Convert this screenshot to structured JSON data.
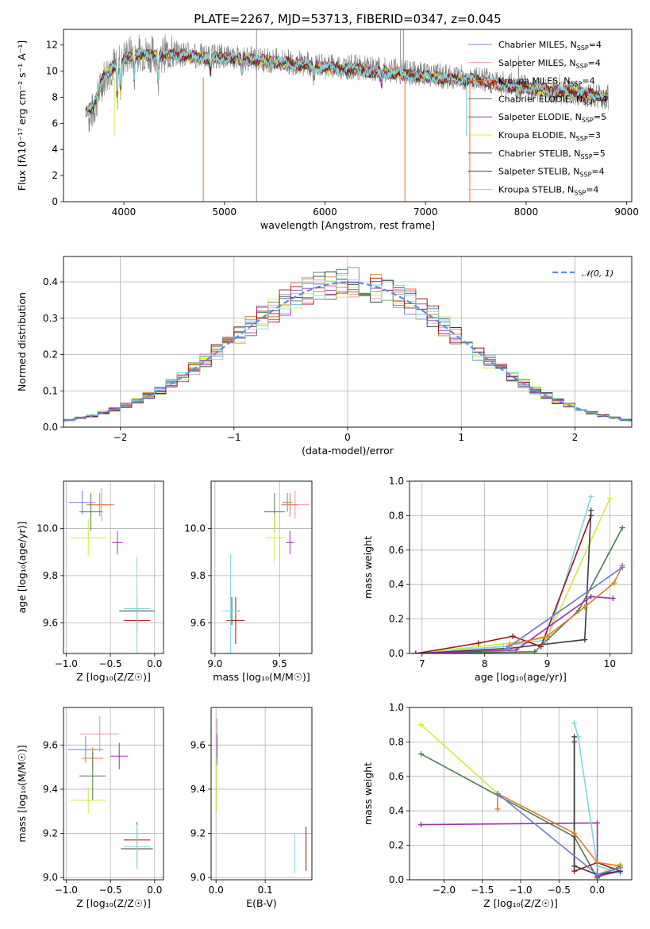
{
  "chart_data": [
    {
      "id": "spectrum",
      "type": "line",
      "title": "PLATE=2267, MJD=53713, FIBERID=0347, z=0.045",
      "xlabel": "wavelength [Angstrom, rest frame]",
      "ylabel": "Flux [fλ10⁻¹⁷ erg cm⁻² s⁻¹ A⁻¹]",
      "xlim": [
        3400,
        9050
      ],
      "ylim": [
        0,
        13.2
      ],
      "xticks": [
        4000,
        5000,
        6000,
        7000,
        8000,
        9000
      ],
      "yticks": [
        0,
        2,
        4,
        6,
        8,
        10,
        12
      ],
      "legend_position": "upper-right",
      "observed": {
        "color": "#808080",
        "wave": [
          3650,
          3700,
          3800,
          3900,
          4000,
          4100,
          4300,
          4500,
          4800,
          5000,
          5200,
          5500,
          5800,
          6000,
          6300,
          6600,
          6900,
          7200,
          7500,
          7800,
          8100,
          8500,
          8800
        ],
        "flux": [
          6.5,
          7.0,
          9.5,
          10.5,
          11.0,
          11.5,
          11.3,
          11.4,
          11.1,
          11.2,
          11.0,
          10.8,
          10.6,
          10.4,
          10.3,
          10.1,
          9.8,
          9.6,
          9.4,
          9.0,
          8.6,
          8.3,
          8.0
        ]
      },
      "models": [
        {
          "name": "Chabrier MILES, N_SSP=4",
          "label": "Chabrier MILES, N",
          "sub": "SSP",
          "suffix": "=4",
          "color": "#6f7fd6"
        },
        {
          "name": "Salpeter MILES, N_SSP=4",
          "label": "Salpeter MILES, N",
          "sub": "SSP",
          "suffix": "=4",
          "color": "#e88ab8"
        },
        {
          "name": "Kroupa MILES, N_SSP=4",
          "label": "Kroupa MILES, N",
          "sub": "SSP",
          "suffix": "=4",
          "color": "#e07b2a"
        },
        {
          "name": "Chabrier ELODIE, N_SSP=4",
          "label": "Chabrier ELODIE, N",
          "sub": "SSP",
          "suffix": "=4",
          "color": "#4e7d4e"
        },
        {
          "name": "Salpeter ELODIE, N_SSP=5",
          "label": "Salpeter ELODIE, N",
          "sub": "SSP",
          "suffix": "=5",
          "color": "#9b30a8"
        },
        {
          "name": "Kroupa ELODIE, N_SSP=3",
          "label": "Kroupa ELODIE, N",
          "sub": "SSP",
          "suffix": "=3",
          "color": "#d4e83a"
        },
        {
          "name": "Chabrier STELIB, N_SSP=5",
          "label": "Chabrier STELIB, N",
          "sub": "SSP",
          "suffix": "=5",
          "color": "#3d3d3d"
        },
        {
          "name": "Salpeter STELIB, N_SSP=4",
          "label": "Salpeter STELIB, N",
          "sub": "SSP",
          "suffix": "=4",
          "color": "#a01010"
        },
        {
          "name": "Kroupa STELIB, N_SSP=4",
          "label": "Kroupa STELIB, N",
          "sub": "SSP",
          "suffix": "=4",
          "color": "#7dd8e0"
        }
      ],
      "model_continuum": {
        "wave": [
          3620,
          3700,
          3800,
          3900,
          4000,
          4100,
          4300,
          4500,
          4800,
          5000,
          5200,
          5500,
          5800,
          6000,
          6300,
          6600,
          6900,
          7200,
          7500,
          7800,
          8100,
          8500,
          8800
        ],
        "flux": [
          7.0,
          7.3,
          9.6,
          10.4,
          10.8,
          11.3,
          11.2,
          11.3,
          11.0,
          11.0,
          10.9,
          10.7,
          10.5,
          10.3,
          10.1,
          9.9,
          9.7,
          9.4,
          9.3,
          8.9,
          8.6,
          8.3,
          8.1
        ]
      }
    },
    {
      "id": "residuals",
      "type": "step",
      "xlabel": "(data-model)/error",
      "ylabel": "Normed distribution",
      "xlim": [
        -2.5,
        2.5
      ],
      "ylim": [
        0,
        0.47
      ],
      "xticks": [
        -2,
        -1,
        0,
        1,
        2
      ],
      "yticks": [
        0.0,
        0.1,
        0.2,
        0.3,
        0.4
      ],
      "legend_position": "upper-right",
      "gaussian_label": "𝒩(0, 1)",
      "gaussian_color": "#5b8ddb",
      "bin_width": 0.1
    },
    {
      "id": "age-vs-Z",
      "type": "errorbar",
      "xlabel": "Z [log₁₀(Z/Z☉)]",
      "ylabel": "age  [log₁₀(age/yr)]",
      "xlim": [
        -1.03,
        0.1
      ],
      "ylim": [
        9.47,
        10.2
      ],
      "xticks": [
        -1.0,
        -0.5,
        0.0
      ],
      "yticks": [
        9.6,
        9.8,
        10.0
      ],
      "points": [
        {
          "model": 0,
          "x": -0.82,
          "xerr": 0.15,
          "y": 10.11,
          "yerr": 0.05
        },
        {
          "model": 1,
          "x": -0.6,
          "xerr": 0.15,
          "y": 10.1,
          "yerr": 0.07
        },
        {
          "model": 2,
          "x": -0.62,
          "xerr": 0.15,
          "y": 10.1,
          "yerr": 0.05
        },
        {
          "model": 3,
          "x": -0.72,
          "xerr": 0.13,
          "y": 10.07,
          "yerr": 0.08
        },
        {
          "model": 4,
          "x": -0.42,
          "xerr": 0.06,
          "y": 9.94,
          "yerr": 0.05
        },
        {
          "model": 5,
          "x": -0.75,
          "xerr": 0.2,
          "y": 9.96,
          "yerr": 0.08
        },
        {
          "model": 6,
          "x": -0.2,
          "xerr": 0.2,
          "y": 9.65,
          "yerr": 0.07
        },
        {
          "model": 7,
          "x": -0.2,
          "xerr": 0.15,
          "y": 9.61,
          "yerr": 0.05
        },
        {
          "model": 8,
          "x": -0.2,
          "xerr": 0.15,
          "y": 9.66,
          "yerr": 0.22
        }
      ]
    },
    {
      "id": "age-vs-mass",
      "type": "errorbar",
      "xlabel": "mass [log₁₀(M/M☉)]",
      "ylabel": "",
      "xlim": [
        8.97,
        9.75
      ],
      "ylim": [
        9.47,
        10.2
      ],
      "xticks": [
        9.0,
        9.5
      ],
      "yticks": [
        9.6,
        9.8,
        10.0
      ],
      "points": [
        {
          "model": 0,
          "x": 9.56,
          "xerr": 0.04,
          "y": 10.11,
          "yerr": 0.04
        },
        {
          "model": 1,
          "x": 9.62,
          "xerr": 0.11,
          "y": 10.1,
          "yerr": 0.06
        },
        {
          "model": 2,
          "x": 9.58,
          "xerr": 0.06,
          "y": 10.1,
          "yerr": 0.05
        },
        {
          "model": 3,
          "x": 9.46,
          "xerr": 0.08,
          "y": 10.07,
          "yerr": 0.08
        },
        {
          "model": 4,
          "x": 9.58,
          "xerr": 0.03,
          "y": 9.94,
          "yerr": 0.05
        },
        {
          "model": 5,
          "x": 9.46,
          "xerr": 0.07,
          "y": 9.96,
          "yerr": 0.1
        },
        {
          "model": 6,
          "x": 9.13,
          "xerr": 0.06,
          "y": 9.65,
          "yerr": 0.06
        },
        {
          "model": 7,
          "x": 9.16,
          "xerr": 0.07,
          "y": 9.61,
          "yerr": 0.1
        },
        {
          "model": 8,
          "x": 9.12,
          "xerr": 0.06,
          "y": 9.65,
          "yerr": 0.24
        }
      ]
    },
    {
      "id": "weight-vs-age",
      "type": "line",
      "xlabel": "age  [log₁₀(age/yr)]",
      "ylabel": "mass weight",
      "xlim": [
        6.8,
        10.35
      ],
      "ylim": [
        0,
        1.0
      ],
      "xticks": [
        7,
        8,
        9,
        10
      ],
      "yticks": [
        0.0,
        0.2,
        0.4,
        0.6,
        0.8,
        1.0
      ],
      "series": [
        {
          "model": 8,
          "x": [
            7.0,
            7.5,
            8.3,
            9.0,
            9.7
          ],
          "y": [
            0.005,
            0.02,
            0.04,
            0.08,
            0.91
          ]
        },
        {
          "model": 5,
          "x": [
            7.0,
            8.4,
            9.0,
            10.0
          ],
          "y": [
            0.005,
            0.06,
            0.09,
            0.9
          ]
        },
        {
          "model": 7,
          "x": [
            6.9,
            7.9,
            8.45,
            8.9,
            9.7
          ],
          "y": [
            0.0,
            0.06,
            0.1,
            0.04,
            0.8
          ]
        },
        {
          "model": 6,
          "x": [
            6.9,
            8.4,
            9.6,
            9.7
          ],
          "y": [
            0.0,
            0.03,
            0.08,
            0.83
          ]
        },
        {
          "model": 3,
          "x": [
            6.9,
            8.8,
            9.5,
            10.2
          ],
          "y": [
            0.0,
            0.01,
            0.25,
            0.73
          ]
        },
        {
          "model": 4,
          "x": [
            6.9,
            8.5,
            9.7,
            10.05
          ],
          "y": [
            0.0,
            0.02,
            0.33,
            0.32
          ]
        },
        {
          "model": 2,
          "x": [
            8.4,
            9.0,
            9.6,
            10.07,
            10.2
          ],
          "y": [
            0.05,
            0.1,
            0.27,
            0.41,
            0.51
          ]
        },
        {
          "model": 1,
          "x": [
            8.4,
            10.2
          ],
          "y": [
            0.04,
            0.5
          ]
        },
        {
          "model": 0,
          "x": [
            8.35,
            10.2
          ],
          "y": [
            0.03,
            0.5
          ]
        }
      ]
    },
    {
      "id": "mass-vs-Z",
      "type": "errorbar",
      "xlabel": "Z [log₁₀(Z/Z☉)]",
      "ylabel": "mass [log₁₀(M/M☉)]",
      "xlim": [
        -1.03,
        0.1
      ],
      "ylim": [
        8.99,
        9.77
      ],
      "xticks": [
        -1.0,
        -0.5,
        0.0
      ],
      "yticks": [
        9.0,
        9.2,
        9.4,
        9.6
      ],
      "points": [
        {
          "model": 0,
          "x": -0.78,
          "xerr": 0.2,
          "y": 9.58,
          "yerr": 0.06
        },
        {
          "model": 1,
          "x": -0.62,
          "xerr": 0.22,
          "y": 9.65,
          "yerr": 0.08
        },
        {
          "model": 2,
          "x": -0.7,
          "xerr": 0.12,
          "y": 9.54,
          "yerr": 0.05
        },
        {
          "model": 3,
          "x": -0.7,
          "xerr": 0.15,
          "y": 9.46,
          "yerr": 0.11
        },
        {
          "model": 4,
          "x": -0.4,
          "xerr": 0.1,
          "y": 9.55,
          "yerr": 0.06
        },
        {
          "model": 5,
          "x": -0.75,
          "xerr": 0.2,
          "y": 9.35,
          "yerr": 0.06
        },
        {
          "model": 6,
          "x": -0.2,
          "xerr": 0.18,
          "y": 9.13,
          "yerr": 0.09
        },
        {
          "model": 7,
          "x": -0.2,
          "xerr": 0.15,
          "y": 9.17,
          "yerr": 0.08
        },
        {
          "model": 8,
          "x": -0.2,
          "xerr": 0.15,
          "y": 9.14,
          "yerr": 0.1
        }
      ]
    },
    {
      "id": "mass-vs-EBV",
      "type": "errorbar",
      "xlabel": "E(B-V)",
      "ylabel": "",
      "xlim": [
        -0.01,
        0.195
      ],
      "ylim": [
        8.99,
        9.77
      ],
      "xticks": [
        0.0,
        0.1
      ],
      "yticks": [
        9.0,
        9.2,
        9.4,
        9.6
      ],
      "points": [
        {
          "model": 1,
          "x": 0.002,
          "xerr": 0.0,
          "y": 9.63,
          "yerr": 0.09
        },
        {
          "model": 4,
          "x": 0.002,
          "xerr": 0.0,
          "y": 9.58,
          "yerr": 0.07
        },
        {
          "model": 5,
          "x": 0.001,
          "xerr": 0.0,
          "y": 9.42,
          "yerr": 0.12
        },
        {
          "model": 8,
          "x": 0.16,
          "xerr": 0.0,
          "y": 9.11,
          "yerr": 0.09
        },
        {
          "model": 7,
          "x": 0.183,
          "xerr": 0.0,
          "y": 9.13,
          "yerr": 0.1
        }
      ]
    },
    {
      "id": "weight-vs-Z",
      "type": "line",
      "xlabel": "Z [log₁₀(Z/Z☉)]",
      "ylabel": "mass weight",
      "xlim": [
        -2.45,
        0.45
      ],
      "ylim": [
        0,
        1.0
      ],
      "xticks": [
        -2.0,
        -1.5,
        -1.0,
        -0.5,
        0.0
      ],
      "yticks": [
        0.0,
        0.2,
        0.4,
        0.6,
        0.8,
        1.0
      ],
      "series": [
        {
          "model": 5,
          "x": [
            -2.3,
            -1.3,
            0.0,
            0.3
          ],
          "y": [
            0.9,
            0.5,
            0.03,
            0.09
          ]
        },
        {
          "model": 3,
          "x": [
            -2.3,
            -0.3,
            0.0,
            0.3
          ],
          "y": [
            0.73,
            0.25,
            0.01,
            0.08
          ]
        },
        {
          "model": 4,
          "x": [
            -2.3,
            0.0,
            0.0,
            0.3
          ],
          "y": [
            0.32,
            0.33,
            0.02,
            0.05
          ]
        },
        {
          "model": 8,
          "x": [
            -0.3,
            -0.25,
            0.0,
            0.3
          ],
          "y": [
            0.91,
            0.83,
            0.08,
            0.04
          ]
        },
        {
          "model": 7,
          "x": [
            -0.3,
            -0.3,
            0.0,
            0.3
          ],
          "y": [
            0.8,
            0.05,
            0.1,
            0.05
          ]
        },
        {
          "model": 6,
          "x": [
            -0.3,
            -0.3,
            0.0,
            0.3
          ],
          "y": [
            0.83,
            0.08,
            0.03,
            0.05
          ]
        },
        {
          "model": 2,
          "x": [
            -1.3,
            -1.3,
            -0.3,
            0.0,
            0.3
          ],
          "y": [
            0.41,
            0.5,
            0.27,
            0.1,
            0.08
          ]
        },
        {
          "model": 0,
          "x": [
            -1.3,
            0.0,
            0.3
          ],
          "y": [
            0.5,
            0.03,
            0.07
          ]
        }
      ]
    }
  ]
}
